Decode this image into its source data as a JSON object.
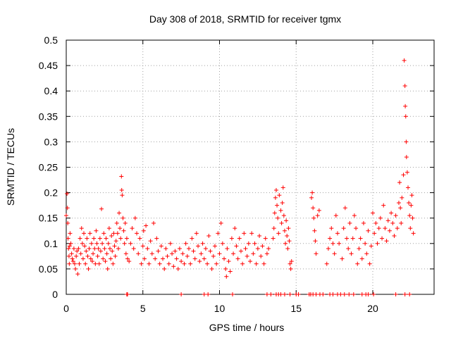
{
  "chart_data": {
    "type": "scatter",
    "title": "Day 308 of 2018, SRMTID for receiver tgmx",
    "xlabel": "GPS time / hours",
    "ylabel": "SRMTID / TECUs",
    "xlim": [
      0,
      24
    ],
    "ylim": [
      0,
      0.5
    ],
    "xticks": [
      0,
      5,
      10,
      15,
      20
    ],
    "xtick_labels": [
      "0",
      "5",
      "10",
      "15",
      "20"
    ],
    "yticks": [
      0,
      0.05,
      0.1,
      0.15,
      0.2,
      0.25,
      0.3,
      0.35,
      0.4,
      0.45,
      0.5
    ],
    "ytick_labels": [
      "0",
      "0.05",
      "0.1",
      "0.15",
      "0.2",
      "0.25",
      "0.3",
      "0.35",
      "0.4",
      "0.45",
      "0.5"
    ],
    "grid": true,
    "marker": "+",
    "series_color": "#ff0000",
    "series": [
      {
        "name": "SRMTID",
        "points": [
          [
            0.0,
            0.155
          ],
          [
            0.05,
            0.198
          ],
          [
            0.08,
            0.17
          ],
          [
            0.1,
            0.14
          ],
          [
            0.12,
            0.11
          ],
          [
            0.15,
            0.09
          ],
          [
            0.18,
            0.075
          ],
          [
            0.2,
            0.06
          ],
          [
            0.22,
            0.095
          ],
          [
            0.25,
            0.12
          ],
          [
            0.3,
            0.1
          ],
          [
            0.35,
            0.08
          ],
          [
            0.4,
            0.07
          ],
          [
            0.45,
            0.065
          ],
          [
            0.5,
            0.09
          ],
          [
            0.55,
            0.06
          ],
          [
            0.6,
            0.05
          ],
          [
            0.65,
            0.075
          ],
          [
            0.7,
            0.085
          ],
          [
            0.75,
            0.04
          ],
          [
            0.8,
            0.09
          ],
          [
            0.85,
            0.06
          ],
          [
            0.9,
            0.11
          ],
          [
            0.95,
            0.08
          ],
          [
            1.0,
            0.13
          ],
          [
            1.05,
            0.1
          ],
          [
            1.1,
            0.07
          ],
          [
            1.15,
            0.12
          ],
          [
            1.2,
            0.095
          ],
          [
            1.25,
            0.06
          ],
          [
            1.3,
            0.085
          ],
          [
            1.35,
            0.11
          ],
          [
            1.4,
            0.075
          ],
          [
            1.45,
            0.05
          ],
          [
            1.5,
            0.09
          ],
          [
            1.55,
            0.12
          ],
          [
            1.6,
            0.07
          ],
          [
            1.65,
            0.1
          ],
          [
            1.7,
            0.065
          ],
          [
            1.75,
            0.08
          ],
          [
            1.8,
            0.11
          ],
          [
            1.85,
            0.09
          ],
          [
            1.9,
            0.06
          ],
          [
            1.95,
            0.125
          ],
          [
            2.0,
            0.1
          ],
          [
            2.05,
            0.075
          ],
          [
            2.1,
            0.09
          ],
          [
            2.15,
            0.06
          ],
          [
            2.2,
            0.11
          ],
          [
            2.25,
            0.085
          ],
          [
            2.3,
            0.168
          ],
          [
            2.35,
            0.1
          ],
          [
            2.4,
            0.07
          ],
          [
            2.45,
            0.12
          ],
          [
            2.5,
            0.09
          ],
          [
            2.55,
            0.065
          ],
          [
            2.6,
            0.11
          ],
          [
            2.65,
            0.08
          ],
          [
            2.7,
            0.05
          ],
          [
            2.75,
            0.1
          ],
          [
            2.8,
            0.13
          ],
          [
            2.85,
            0.09
          ],
          [
            2.9,
            0.07
          ],
          [
            2.95,
            0.115
          ],
          [
            3.0,
            0.085
          ],
          [
            3.05,
            0.06
          ],
          [
            3.1,
            0.12
          ],
          [
            3.15,
            0.095
          ],
          [
            3.2,
            0.075
          ],
          [
            3.25,
            0.105
          ],
          [
            3.3,
            0.14
          ],
          [
            3.35,
            0.12
          ],
          [
            3.4,
            0.09
          ],
          [
            3.45,
            0.16
          ],
          [
            3.5,
            0.13
          ],
          [
            3.55,
            0.11
          ],
          [
            3.6,
            0.232
          ],
          [
            3.62,
            0.205
          ],
          [
            3.65,
            0.195
          ],
          [
            3.7,
            0.15
          ],
          [
            3.75,
            0.125
          ],
          [
            3.8,
            0.1
          ],
          [
            3.85,
            0.14
          ],
          [
            3.9,
            0.08
          ],
          [
            3.95,
            0.11
          ],
          [
            4.0,
            0.07
          ],
          [
            4.1,
            0.065
          ],
          [
            4.2,
            0.1
          ],
          [
            4.3,
            0.13
          ],
          [
            4.4,
            0.09
          ],
          [
            4.5,
            0.15
          ],
          [
            4.6,
            0.12
          ],
          [
            4.7,
            0.08
          ],
          [
            4.8,
            0.11
          ],
          [
            4.9,
            0.06
          ],
          [
            5.0,
            0.095
          ],
          [
            5.05,
            0.125
          ],
          [
            5.1,
            0.07
          ],
          [
            5.2,
            0.135
          ],
          [
            5.3,
            0.09
          ],
          [
            5.4,
            0.06
          ],
          [
            5.5,
            0.105
          ],
          [
            5.6,
            0.08
          ],
          [
            5.7,
            0.14
          ],
          [
            5.8,
            0.07
          ],
          [
            5.9,
            0.11
          ],
          [
            6.0,
            0.085
          ],
          [
            6.1,
            0.06
          ],
          [
            6.2,
            0.095
          ],
          [
            6.3,
            0.07
          ],
          [
            6.4,
            0.05
          ],
          [
            6.5,
            0.09
          ],
          [
            6.6,
            0.075
          ],
          [
            6.7,
            0.06
          ],
          [
            6.8,
            0.1
          ],
          [
            6.9,
            0.08
          ],
          [
            7.0,
            0.055
          ],
          [
            7.1,
            0.085
          ],
          [
            7.2,
            0.07
          ],
          [
            7.3,
            0.05
          ],
          [
            7.4,
            0.09
          ],
          [
            7.5,
            0.065
          ],
          [
            7.6,
            0.08
          ],
          [
            7.7,
            0.06
          ],
          [
            7.8,
            0.1
          ],
          [
            7.9,
            0.075
          ],
          [
            8.0,
            0.09
          ],
          [
            8.1,
            0.06
          ],
          [
            8.2,
            0.11
          ],
          [
            8.3,
            0.085
          ],
          [
            8.4,
            0.07
          ],
          [
            8.5,
            0.12
          ],
          [
            8.6,
            0.095
          ],
          [
            8.7,
            0.065
          ],
          [
            8.8,
            0.08
          ],
          [
            8.9,
            0.1
          ],
          [
            9.0,
            0.07
          ],
          [
            9.1,
            0.09
          ],
          [
            9.2,
            0.06
          ],
          [
            9.3,
            0.115
          ],
          [
            9.4,
            0.085
          ],
          [
            9.5,
            0.05
          ],
          [
            9.6,
            0.075
          ],
          [
            9.7,
            0.095
          ],
          [
            9.8,
            0.06
          ],
          [
            9.9,
            0.12
          ],
          [
            10.0,
            0.08
          ],
          [
            10.1,
            0.14
          ],
          [
            10.2,
            0.1
          ],
          [
            10.3,
            0.07
          ],
          [
            10.4,
            0.05
          ],
          [
            10.45,
            0.035
          ],
          [
            10.5,
            0.09
          ],
          [
            10.6,
            0.065
          ],
          [
            10.7,
            0.045
          ],
          [
            10.8,
            0.11
          ],
          [
            10.9,
            0.08
          ],
          [
            11.0,
            0.13
          ],
          [
            11.1,
            0.095
          ],
          [
            11.2,
            0.07
          ],
          [
            11.3,
            0.11
          ],
          [
            11.4,
            0.085
          ],
          [
            11.5,
            0.06
          ],
          [
            11.6,
            0.12
          ],
          [
            11.7,
            0.09
          ],
          [
            11.8,
            0.075
          ],
          [
            11.9,
            0.1
          ],
          [
            12.0,
            0.065
          ],
          [
            12.1,
            0.12
          ],
          [
            12.2,
            0.08
          ],
          [
            12.3,
            0.1
          ],
          [
            12.4,
            0.06
          ],
          [
            12.5,
            0.09
          ],
          [
            12.6,
            0.115
          ],
          [
            12.7,
            0.075
          ],
          [
            12.8,
            0.095
          ],
          [
            12.9,
            0.06
          ],
          [
            13.0,
            0.11
          ],
          [
            13.1,
            0.08
          ],
          [
            13.2,
            0.09
          ],
          [
            13.5,
            0.11
          ],
          [
            13.55,
            0.13
          ],
          [
            13.6,
            0.16
          ],
          [
            13.65,
            0.19
          ],
          [
            13.7,
            0.205
          ],
          [
            13.75,
            0.175
          ],
          [
            13.8,
            0.15
          ],
          [
            13.85,
            0.12
          ],
          [
            13.9,
            0.195
          ],
          [
            14.0,
            0.165
          ],
          [
            14.05,
            0.14
          ],
          [
            14.1,
            0.18
          ],
          [
            14.15,
            0.21
          ],
          [
            14.2,
            0.155
          ],
          [
            14.25,
            0.125
          ],
          [
            14.3,
            0.1
          ],
          [
            14.35,
            0.145
          ],
          [
            14.4,
            0.115
          ],
          [
            14.45,
            0.09
          ],
          [
            14.5,
            0.13
          ],
          [
            14.55,
            0.105
          ],
          [
            14.6,
            0.06
          ],
          [
            14.65,
            0.05
          ],
          [
            14.7,
            0.065
          ],
          [
            16.0,
            0.19
          ],
          [
            16.05,
            0.2
          ],
          [
            16.1,
            0.17
          ],
          [
            16.15,
            0.15
          ],
          [
            16.2,
            0.125
          ],
          [
            16.25,
            0.105
          ],
          [
            16.3,
            0.08
          ],
          [
            16.4,
            0.155
          ],
          [
            16.5,
            0.165
          ],
          [
            17.0,
            0.06
          ],
          [
            17.1,
            0.09
          ],
          [
            17.2,
            0.11
          ],
          [
            17.3,
            0.13
          ],
          [
            17.4,
            0.1
          ],
          [
            17.5,
            0.08
          ],
          [
            17.6,
            0.155
          ],
          [
            17.7,
            0.12
          ],
          [
            17.8,
            0.1
          ],
          [
            18.0,
            0.07
          ],
          [
            18.1,
            0.13
          ],
          [
            18.2,
            0.17
          ],
          [
            18.3,
            0.11
          ],
          [
            18.4,
            0.09
          ],
          [
            18.5,
            0.14
          ],
          [
            18.6,
            0.08
          ],
          [
            18.7,
            0.11
          ],
          [
            18.8,
            0.155
          ],
          [
            18.9,
            0.13
          ],
          [
            19.0,
            0.06
          ],
          [
            19.1,
            0.09
          ],
          [
            19.2,
            0.11
          ],
          [
            19.3,
            0.07
          ],
          [
            19.4,
            0.14
          ],
          [
            19.5,
            0.1
          ],
          [
            19.6,
            0.08
          ],
          [
            19.7,
            0.125
          ],
          [
            19.8,
            0.06
          ],
          [
            19.9,
            0.095
          ],
          [
            20.0,
            0.16
          ],
          [
            20.1,
            0.12
          ],
          [
            20.2,
            0.14
          ],
          [
            20.3,
            0.1
          ],
          [
            20.4,
            0.13
          ],
          [
            20.5,
            0.15
          ],
          [
            20.6,
            0.11
          ],
          [
            20.7,
            0.175
          ],
          [
            20.8,
            0.13
          ],
          [
            20.9,
            0.105
          ],
          [
            21.0,
            0.145
          ],
          [
            21.1,
            0.125
          ],
          [
            21.2,
            0.16
          ],
          [
            21.3,
            0.14
          ],
          [
            21.4,
            0.115
          ],
          [
            21.5,
            0.155
          ],
          [
            21.6,
            0.13
          ],
          [
            21.7,
            0.18
          ],
          [
            21.75,
            0.22
          ],
          [
            21.8,
            0.17
          ],
          [
            21.85,
            0.14
          ],
          [
            21.9,
            0.19
          ],
          [
            22.0,
            0.235
          ],
          [
            22.05,
            0.46
          ],
          [
            22.1,
            0.41
          ],
          [
            22.12,
            0.37
          ],
          [
            22.15,
            0.35
          ],
          [
            22.18,
            0.3
          ],
          [
            22.2,
            0.27
          ],
          [
            22.25,
            0.24
          ],
          [
            22.3,
            0.21
          ],
          [
            22.35,
            0.18
          ],
          [
            22.4,
            0.155
          ],
          [
            22.45,
            0.13
          ],
          [
            22.5,
            0.175
          ],
          [
            22.55,
            0.195
          ],
          [
            22.6,
            0.15
          ],
          [
            22.65,
            0.12
          ]
        ]
      }
    ],
    "zero_points": [
      3.95,
      4.0,
      7.5,
      9.0,
      9.25,
      10.85,
      13.1,
      13.35,
      13.7,
      13.85,
      14.0,
      14.25,
      14.6,
      15.0,
      15.15,
      15.85,
      15.95,
      16.1,
      16.3,
      16.55,
      16.75,
      17.2,
      17.4,
      17.7,
      17.9,
      18.15,
      18.45,
      18.75,
      19.3,
      19.55,
      19.7,
      20.05,
      21.5,
      22.1,
      22.4
    ]
  }
}
